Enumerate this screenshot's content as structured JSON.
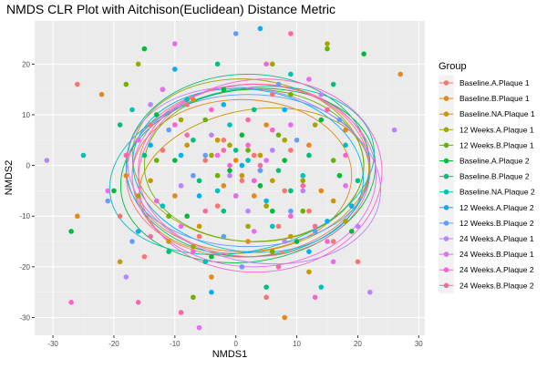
{
  "chart_data": {
    "type": "scatter",
    "title": "NMDS CLR Plot with Aitchison(Euclidean) Distance Metric",
    "xlabel": "NMDS1",
    "ylabel": "NMDS2",
    "xlim": [
      -33,
      31
    ],
    "ylim": [
      -33.5,
      28.5
    ],
    "x_ticks": [
      -30,
      -20,
      -10,
      0,
      10,
      20,
      30
    ],
    "y_ticks": [
      -30,
      -20,
      -10,
      0,
      10,
      20
    ],
    "grid": true,
    "legend_position": "right",
    "legend_title": "Group",
    "series": [
      {
        "name": "Baseline.A.Plaque 1",
        "color": "#F8766D",
        "ellipse": {
          "cx": 2,
          "cy": -1,
          "rx": 20,
          "ry": 17,
          "angle": 5
        },
        "points": [
          [
            -26,
            16
          ],
          [
            -14,
            8
          ],
          [
            5,
            -26
          ],
          [
            -8,
            12
          ],
          [
            9,
            3
          ],
          [
            -3,
            -8
          ],
          [
            12,
            -9
          ],
          [
            16,
            -15
          ],
          [
            -19,
            -10
          ],
          [
            6,
            14
          ],
          [
            3,
            2
          ],
          [
            -5,
            1
          ],
          [
            1,
            -3
          ],
          [
            -2,
            5
          ],
          [
            -15,
            -18
          ],
          [
            8,
            -5
          ],
          [
            20,
            -19
          ],
          [
            -12,
            3
          ],
          [
            7,
            -12
          ],
          [
            -6,
            -14
          ]
        ]
      },
      {
        "name": "Baseline.B.Plaque 1",
        "color": "#E7861B",
        "ellipse": {
          "cx": 1,
          "cy": -2,
          "rx": 18,
          "ry": 15,
          "angle": 0
        },
        "points": [
          [
            27,
            18
          ],
          [
            -26,
            -10
          ],
          [
            8,
            -30
          ],
          [
            -22,
            14
          ],
          [
            -18,
            -2
          ],
          [
            -7,
            13
          ],
          [
            12,
            4
          ],
          [
            2,
            -15
          ],
          [
            -4,
            -22
          ],
          [
            18,
            7
          ],
          [
            -10,
            -6
          ],
          [
            5,
            8
          ],
          [
            0,
            1
          ],
          [
            -2,
            -4
          ],
          [
            3,
            -6
          ],
          [
            14,
            -5
          ]
        ]
      },
      {
        "name": "Baseline.NA.Plaque 1",
        "color": "#C99800",
        "ellipse": {
          "cx": 3,
          "cy": -3,
          "rx": 19,
          "ry": 14,
          "angle": 10
        },
        "points": [
          [
            -19,
            -19
          ],
          [
            -14,
            -3
          ],
          [
            -6,
            -12
          ],
          [
            6,
            -3
          ],
          [
            12,
            -21
          ],
          [
            1,
            -2
          ],
          [
            -8,
            4
          ],
          [
            16,
            -7
          ],
          [
            -3,
            5
          ],
          [
            9,
            -14
          ],
          [
            4,
            2
          ],
          [
            -11,
            -15
          ]
        ]
      },
      {
        "name": "12 Weeks.A.Plaque 1",
        "color": "#A3A500",
        "ellipse": {
          "cx": 2,
          "cy": 1,
          "rx": 19,
          "ry": 16,
          "angle": -5
        },
        "points": [
          [
            -16,
            20
          ],
          [
            15,
            24
          ],
          [
            -12,
            15
          ],
          [
            6,
            20
          ],
          [
            -7,
            -16
          ],
          [
            13,
            8
          ],
          [
            -4,
            2
          ],
          [
            2,
            -12
          ],
          [
            -16,
            -6
          ],
          [
            8,
            5
          ],
          [
            -1,
            4
          ],
          [
            18,
            -11
          ],
          [
            4,
            -1
          ],
          [
            -9,
            9
          ],
          [
            11,
            -3
          ],
          [
            5,
            -8
          ]
        ]
      },
      {
        "name": "12 Weeks.B.Plaque 1",
        "color": "#6BB100",
        "ellipse": {
          "cx": 3,
          "cy": 0,
          "rx": 18,
          "ry": 15,
          "angle": 0
        },
        "points": [
          [
            -7,
            -26
          ],
          [
            15,
            23
          ],
          [
            -18,
            16
          ],
          [
            -11,
            -10
          ],
          [
            9,
            14
          ],
          [
            0,
            -6
          ],
          [
            16,
            1
          ],
          [
            -5,
            9
          ],
          [
            6,
            -17
          ],
          [
            -13,
            1
          ],
          [
            2,
            3
          ],
          [
            11,
            -9
          ],
          [
            -3,
            -2
          ],
          [
            7,
            6
          ]
        ]
      },
      {
        "name": "Baseline.A.Plaque 2",
        "color": "#00BA38",
        "ellipse": {
          "cx": 2,
          "cy": -2,
          "rx": 21,
          "ry": 17,
          "angle": 8
        },
        "points": [
          [
            -27,
            -13
          ],
          [
            -15,
            23
          ],
          [
            21,
            22
          ],
          [
            -20,
            -5
          ],
          [
            -13,
            10
          ],
          [
            10,
            -15
          ],
          [
            -2,
            15
          ],
          [
            14,
            9
          ],
          [
            -8,
            -10
          ],
          [
            4,
            -4
          ],
          [
            17,
            -2
          ],
          [
            -4,
            -18
          ],
          [
            1,
            6
          ],
          [
            -10,
            1
          ],
          [
            8,
            1
          ],
          [
            19,
            -13
          ],
          [
            -1,
            -1
          ],
          [
            6,
            -9
          ]
        ]
      },
      {
        "name": "Baseline.B.Plaque 2",
        "color": "#00BF7D",
        "ellipse": {
          "cx": 2,
          "cy": 0,
          "rx": 20,
          "ry": 18,
          "angle": 0
        },
        "points": [
          [
            -15,
            2
          ],
          [
            -11,
            -17
          ],
          [
            -3,
            20
          ],
          [
            16,
            16
          ],
          [
            20,
            -3
          ],
          [
            5,
            -24
          ],
          [
            -19,
            8
          ],
          [
            -7,
            5
          ],
          [
            9,
            -5
          ],
          [
            3,
            11
          ],
          [
            -2,
            -9
          ],
          [
            12,
            2
          ],
          [
            0,
            3
          ],
          [
            -6,
            -3
          ],
          [
            7,
            -1
          ]
        ]
      },
      {
        "name": "Baseline.NA.Plaque 2",
        "color": "#00C0B8",
        "ellipse": {
          "cx": 1,
          "cy": -1,
          "rx": 22,
          "ry": 16,
          "angle": 12
        },
        "points": [
          [
            -25,
            2
          ],
          [
            -17,
            11
          ],
          [
            14,
            -24
          ],
          [
            9,
            18
          ],
          [
            -5,
            -19
          ],
          [
            3,
            -3
          ],
          [
            -12,
            -8
          ],
          [
            18,
            4
          ],
          [
            -1,
            8
          ],
          [
            6,
            -12
          ],
          [
            -8,
            13
          ],
          [
            11,
            -2
          ],
          [
            2,
            1
          ],
          [
            -3,
            -5
          ]
        ]
      },
      {
        "name": "12 Weeks.A.Plaque 2",
        "color": "#00B0F6",
        "ellipse": {
          "cx": 2,
          "cy": -1,
          "rx": 19,
          "ry": 16,
          "angle": -8
        },
        "points": [
          [
            -4,
            -25
          ],
          [
            4,
            27
          ],
          [
            -14,
            4
          ],
          [
            -10,
            19
          ],
          [
            15,
            -11
          ],
          [
            8,
            11
          ],
          [
            -6,
            -6
          ],
          [
            1,
            0
          ],
          [
            19,
            -8
          ],
          [
            -16,
            -13
          ],
          [
            5,
            -7
          ],
          [
            -2,
            12
          ],
          [
            12,
            -17
          ],
          [
            -9,
            2
          ]
        ]
      },
      {
        "name": "12 Weeks.B.Plaque 2",
        "color": "#619CFF",
        "ellipse": {
          "cx": 2,
          "cy": -1,
          "rx": 20,
          "ry": 15,
          "angle": 0
        },
        "points": [
          [
            0,
            26
          ],
          [
            -21,
            -7
          ],
          [
            13,
            -13
          ],
          [
            -17,
            -15
          ],
          [
            7,
            16
          ],
          [
            -2,
            -14
          ],
          [
            10,
            5
          ],
          [
            -11,
            7
          ],
          [
            4,
            -1
          ],
          [
            17,
            9
          ],
          [
            -5,
            2
          ],
          [
            1,
            -20
          ],
          [
            -7,
            -2
          ],
          [
            9,
            -9
          ]
        ]
      },
      {
        "name": "24 Weeks.A.Plaque 1",
        "color": "#B983FF",
        "ellipse": {
          "cx": 3,
          "cy": -2,
          "rx": 21,
          "ry": 17,
          "angle": -12
        },
        "points": [
          [
            -31,
            1
          ],
          [
            26,
            7
          ],
          [
            22,
            -25
          ],
          [
            -18,
            -22
          ],
          [
            14,
            14
          ],
          [
            -9,
            -4
          ],
          [
            6,
            3
          ],
          [
            20,
            -12
          ],
          [
            -14,
            12
          ],
          [
            2,
            -9
          ],
          [
            -4,
            6
          ],
          [
            11,
            -5
          ],
          [
            -1,
            -2
          ],
          [
            8,
            -15
          ]
        ]
      },
      {
        "name": "24 Weeks.B.Plaque 1",
        "color": "#E76BF3",
        "ellipse": {
          "cx": 3,
          "cy": -2,
          "rx": 20,
          "ry": 18,
          "angle": 0
        },
        "points": [
          [
            -10,
            24
          ],
          [
            -21,
            -5
          ],
          [
            -6,
            -32
          ],
          [
            16,
            -19
          ],
          [
            12,
            17
          ],
          [
            -16,
            5
          ],
          [
            3,
            -13
          ],
          [
            9,
            8
          ],
          [
            -3,
            2
          ],
          [
            18,
            -4
          ],
          [
            -9,
            -12
          ],
          [
            5,
            1
          ],
          [
            0,
            -6
          ],
          [
            -12,
            15
          ]
        ]
      },
      {
        "name": "24 Weeks.A.Plaque 2",
        "color": "#FD61D1",
        "ellipse": {
          "cx": 4,
          "cy": -2,
          "rx": 20,
          "ry": 19,
          "angle": 5
        },
        "points": [
          [
            -27,
            -27
          ],
          [
            13,
            -26
          ],
          [
            5,
            20
          ],
          [
            -4,
            11
          ],
          [
            18,
            2
          ],
          [
            -13,
            -7
          ],
          [
            9,
            -10
          ],
          [
            2,
            4
          ],
          [
            -7,
            -17
          ],
          [
            15,
            -15
          ],
          [
            -1,
            0
          ],
          [
            6,
            7
          ],
          [
            3,
            -3
          ],
          [
            -10,
            8
          ]
        ]
      },
      {
        "name": "24 Weeks.B.Plaque 2",
        "color": "#FF67A4",
        "ellipse": {
          "cx": 3,
          "cy": -1,
          "rx": 19,
          "ry": 17,
          "angle": 0
        },
        "points": [
          [
            -18,
            2
          ],
          [
            -16,
            -27
          ],
          [
            -9,
            -29
          ],
          [
            9,
            26
          ],
          [
            -14,
            -14
          ],
          [
            11,
            -4
          ],
          [
            2,
            9
          ],
          [
            -5,
            -9
          ],
          [
            15,
            11
          ],
          [
            -2,
            3
          ],
          [
            7,
            -20
          ],
          [
            4,
            0
          ],
          [
            -8,
            6
          ],
          [
            13,
            -12
          ]
        ]
      }
    ]
  }
}
